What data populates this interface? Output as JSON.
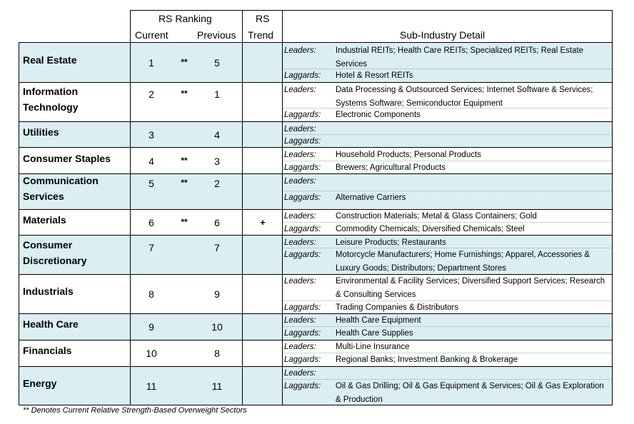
{
  "header": {
    "rs_ranking": "RS Ranking",
    "current": "Current",
    "previous": "Previous",
    "rs": "RS",
    "trend": "Trend",
    "sub_industry": "Sub-Industry Detail"
  },
  "labels": {
    "leaders": "Leaders:",
    "laggards": "Laggards:"
  },
  "rows": [
    {
      "sector": "Real Estate",
      "current": "1",
      "stars": "**",
      "previous": "5",
      "trend": "",
      "leaders": "Industrial REITs; Health Care REITs; Specialized REITs; Real Estate Services",
      "laggards": "Hotel & Resort REITs"
    },
    {
      "sector": "Information Technology",
      "current": "2",
      "stars": "**",
      "previous": "1",
      "trend": "",
      "leaders": "Data Processing & Outsourced Services; Internet Software & Services; Systems Software; Semiconductor Equipment",
      "laggards": "Electronic Components"
    },
    {
      "sector": "Utilities",
      "current": "3",
      "stars": "",
      "previous": "4",
      "trend": "",
      "leaders": "",
      "laggards": ""
    },
    {
      "sector": "Consumer Staples",
      "current": "4",
      "stars": "**",
      "previous": "3",
      "trend": "",
      "leaders": "Household Products; Personal Products",
      "laggards": "Brewers; Agricultural Products"
    },
    {
      "sector": "Communication Services",
      "current": "5",
      "stars": "**",
      "previous": "2",
      "trend": "",
      "leaders": "",
      "laggards": "Alternative Carriers"
    },
    {
      "sector": "Materials",
      "current": "6",
      "stars": "**",
      "previous": "6",
      "trend": "+",
      "leaders": "Construction Materials; Metal & Glass Containers; Gold",
      "laggards": "Commodity Chemicals; Diversified Chemicals; Steel"
    },
    {
      "sector": "Consumer Discretionary",
      "current": "7",
      "stars": "",
      "previous": "7",
      "trend": "",
      "leaders": "Leisure Products; Restaurants",
      "laggards": "Motorcycle Manufacturers; Home Furnishings; Apparel, Accessories & Luxury Goods; Distributors; Department Stores"
    },
    {
      "sector": "Industrials",
      "current": "8",
      "stars": "",
      "previous": "9",
      "trend": "",
      "leaders": "Environmental & Facility Services; Diversified Support Services; Research & Consulting Services",
      "laggards": "Trading Companies & Distributors"
    },
    {
      "sector": "Health Care",
      "current": "9",
      "stars": "",
      "previous": "10",
      "trend": "",
      "leaders": "Health Care Equipment",
      "laggards": "Health Care Supplies"
    },
    {
      "sector": "Financials",
      "current": "10",
      "stars": "",
      "previous": "8",
      "trend": "",
      "leaders": "Multi-Line Insurance",
      "laggards": "Regional Banks; Investment Banking & Brokerage"
    },
    {
      "sector": "Energy",
      "current": "11",
      "stars": "",
      "previous": "11",
      "trend": "",
      "leaders": "",
      "laggards": "Oil & Gas Drilling; Oil & Gas Equipment & Services; Oil & Gas Exploration & Production"
    }
  ],
  "footnote": "** Denotes Current Relative Strength-Based Overweight Sectors",
  "colors": {
    "band": "#daeef3",
    "text": "#000000"
  }
}
